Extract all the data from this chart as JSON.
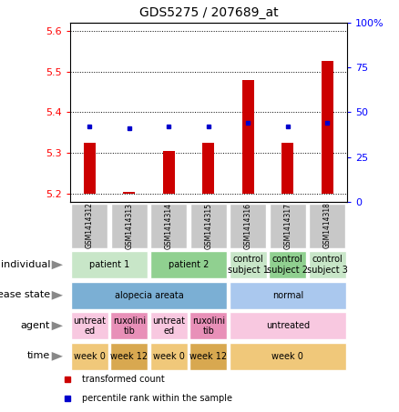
{
  "title": "GDS5275 / 207689_at",
  "samples": [
    "GSM1414312",
    "GSM1414313",
    "GSM1414314",
    "GSM1414315",
    "GSM1414316",
    "GSM1414317",
    "GSM1414318"
  ],
  "red_values": [
    5.325,
    5.205,
    5.305,
    5.325,
    5.48,
    5.325,
    5.525
  ],
  "blue_values": [
    5.365,
    5.36,
    5.365,
    5.365,
    5.375,
    5.365,
    5.375
  ],
  "ylim_left": [
    5.18,
    5.62
  ],
  "yticks_left": [
    5.2,
    5.3,
    5.4,
    5.5,
    5.6
  ],
  "ylim_right": [
    0,
    100
  ],
  "yticks_right": [
    0,
    25,
    50,
    75,
    100
  ],
  "yticklabels_right": [
    "0",
    "25",
    "50",
    "75",
    "100%"
  ],
  "bar_bottom": 5.2,
  "bar_color": "#cc0000",
  "dot_color": "#0000cc",
  "rows": [
    {
      "label": "individual",
      "cells": [
        {
          "text": "patient 1",
          "span": 2,
          "color": "#c8e6c8"
        },
        {
          "text": "patient 2",
          "span": 2,
          "color": "#90d090"
        },
        {
          "text": "control\nsubject 1",
          "span": 1,
          "color": "#c8e6c8"
        },
        {
          "text": "control\nsubject 2",
          "span": 1,
          "color": "#90d090"
        },
        {
          "text": "control\nsubject 3",
          "span": 1,
          "color": "#c8e6c8"
        }
      ]
    },
    {
      "label": "disease state",
      "cells": [
        {
          "text": "alopecia areata",
          "span": 4,
          "color": "#7bafd4"
        },
        {
          "text": "normal",
          "span": 3,
          "color": "#aac8ee"
        }
      ]
    },
    {
      "label": "agent",
      "cells": [
        {
          "text": "untreat\ned",
          "span": 1,
          "color": "#f8c8e0"
        },
        {
          "text": "ruxolini\ntib",
          "span": 1,
          "color": "#e890b8"
        },
        {
          "text": "untreat\ned",
          "span": 1,
          "color": "#f8c8e0"
        },
        {
          "text": "ruxolini\ntib",
          "span": 1,
          "color": "#e890b8"
        },
        {
          "text": "untreated",
          "span": 3,
          "color": "#f8c8e0"
        }
      ]
    },
    {
      "label": "time",
      "cells": [
        {
          "text": "week 0",
          "span": 1,
          "color": "#f0c87a"
        },
        {
          "text": "week 12",
          "span": 1,
          "color": "#d8a850"
        },
        {
          "text": "week 0",
          "span": 1,
          "color": "#f0c87a"
        },
        {
          "text": "week 12",
          "span": 1,
          "color": "#d8a850"
        },
        {
          "text": "week 0",
          "span": 3,
          "color": "#f0c87a"
        }
      ]
    }
  ],
  "legend": [
    {
      "color": "#cc0000",
      "label": "transformed count"
    },
    {
      "color": "#0000cc",
      "label": "percentile rank within the sample"
    }
  ],
  "sample_box_color": "#c8c8c8",
  "title_fontsize": 10,
  "label_fontsize": 8,
  "cell_fontsize": 7,
  "tick_fontsize": 8
}
